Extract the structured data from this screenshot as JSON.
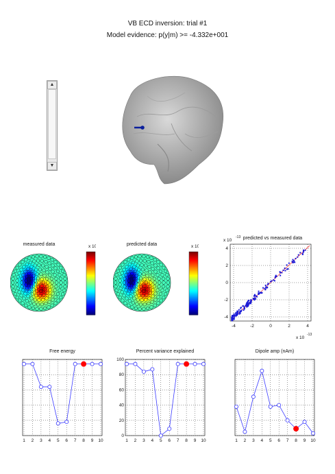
{
  "header": {
    "title": "VB ECD inversion: trial #1",
    "evidence": "Model evidence: p(y|m) >= -4.332e+001"
  },
  "slider": {
    "up_icon": "arrow-up-icon",
    "down_icon": "arrow-down-icon"
  },
  "colors": {
    "series": "#3a3aff",
    "selected": "#ff0000",
    "diag": "#ff0000"
  },
  "topomaps": [
    {
      "title": "measured data",
      "colorbar_exp": "x 10",
      "colorbar_exp_power": "-13",
      "colorbar_ticks": [
        "4",
        "2",
        "0",
        "-2",
        "-4"
      ]
    },
    {
      "title": "predicted data",
      "colorbar_exp": "x 10",
      "colorbar_exp_power": "-13",
      "colorbar_ticks": [
        "4",
        "2",
        "0",
        "-2",
        "-4"
      ]
    }
  ],
  "scatter": {
    "title": "predicted vs measured data",
    "y_exp": "x 10",
    "y_exp_power": "-13",
    "x_exp": "x 10",
    "x_exp_power": "-13",
    "xticks": [
      "-4",
      "-2",
      "0",
      "2",
      "4"
    ],
    "yticks": [
      "4",
      "2",
      "0",
      "-2",
      "-4"
    ]
  },
  "chart_data": [
    {
      "type": "line",
      "title": "Free energy",
      "x": [
        1,
        2,
        3,
        4,
        5,
        6,
        7,
        8,
        9,
        10
      ],
      "values": [
        94,
        94,
        64,
        64,
        16,
        18,
        94,
        94,
        94,
        94
      ],
      "ylim": [
        0,
        100
      ],
      "xticks": [
        "1",
        "2",
        "3",
        "4",
        "5",
        "6",
        "7",
        "8",
        "9",
        "10"
      ],
      "yticks": [],
      "selected_index": 8
    },
    {
      "type": "line",
      "title": "Percent variance explained",
      "x": [
        1,
        2,
        3,
        4,
        5,
        6,
        7,
        8,
        9,
        10
      ],
      "values": [
        94,
        94,
        84,
        87,
        0,
        9,
        94,
        94,
        94,
        94
      ],
      "ylim": [
        0,
        100
      ],
      "xticks": [
        "1",
        "2",
        "3",
        "4",
        "5",
        "6",
        "7",
        "8",
        "9",
        "10"
      ],
      "yticks": [
        "100",
        "80",
        "60",
        "40",
        "20",
        "0"
      ],
      "selected_index": 8
    },
    {
      "type": "line",
      "title": "Dipole amp (nAm)",
      "x": [
        1,
        2,
        3,
        4,
        5,
        6,
        7,
        8,
        9,
        10
      ],
      "values": [
        38,
        5,
        51,
        85,
        38,
        40,
        20,
        9,
        18,
        3
      ],
      "ylim": [
        0,
        100
      ],
      "xticks": [
        "1",
        "2",
        "3",
        "4",
        "5",
        "6",
        "7",
        "8",
        "9",
        "10"
      ],
      "yticks": [],
      "selected_index": 8
    }
  ]
}
